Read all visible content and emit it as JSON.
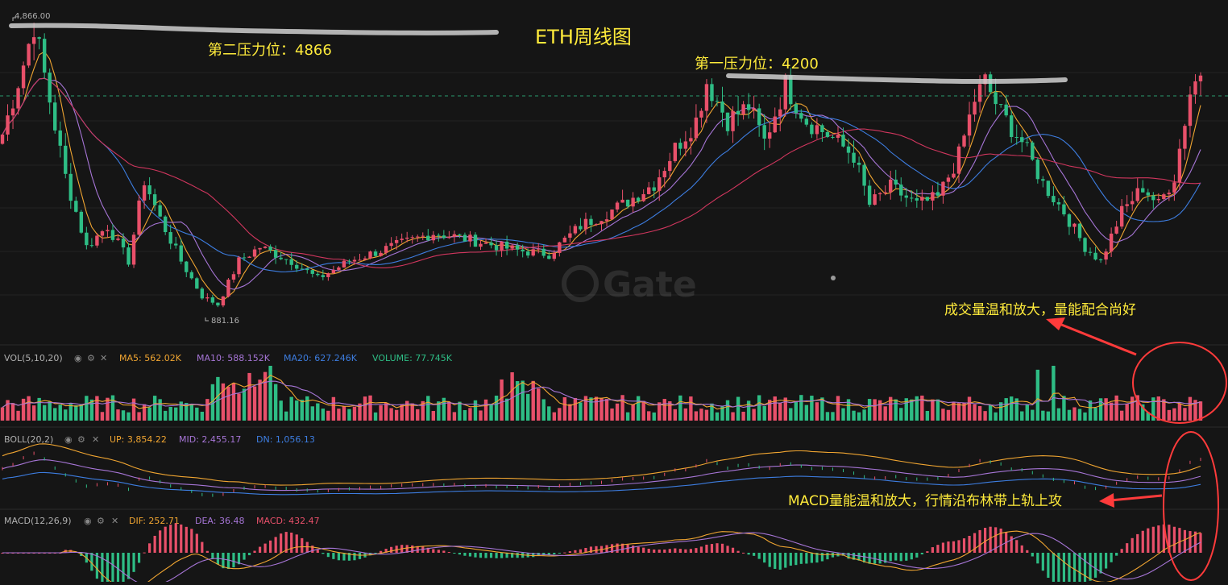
{
  "colors": {
    "background": "#151515",
    "up": "#e8506a",
    "down": "#2ebd85",
    "ma_fast": "#f0a531",
    "ma_mid": "#a675d6",
    "ma_slow": "#3d7de0",
    "ma_long": "#d1365e",
    "annotation": "#ffeb3b",
    "circle": "#ff3b3b",
    "resistance": "#cfcfcf",
    "dashed": "#2ebd85",
    "label": "#b0b0b0"
  },
  "annotations": {
    "title": "ETH周线图",
    "second_resistance": "第二压力位：4866",
    "first_resistance": "第一压力位：4200",
    "volume_note": "成交量温和放大，量能配合尚好",
    "macd_note": "MACD量能温和放大，行情沿布林带上轨上攻"
  },
  "watermark": "Gate",
  "price_labels": {
    "high": "4,866.00",
    "low": "881.16"
  },
  "volume_panel": {
    "name": "VOL(5,10,20)",
    "ma5": "MA5: 562.02K",
    "ma10": "MA10: 588.152K",
    "ma20": "MA20: 627.246K",
    "volume": "VOLUME: 77.745K"
  },
  "boll_panel": {
    "name": "BOLL(20,2)",
    "up": "UP: 3,854.22",
    "mid": "MID: 2,455.17",
    "dn": "DN: 1,056.13"
  },
  "macd_panel": {
    "name": "MACD(12,26,9)",
    "dif": "DIF: 252.71",
    "dea": "DEA: 36.48",
    "macd": "MACD: 432.47"
  },
  "chart_data": {
    "type": "candlestick",
    "timeframe": "weekly",
    "price_high": 4866,
    "price_low": 881.16,
    "resistance_levels": [
      4866,
      4200
    ],
    "key_points": [
      {
        "i": 0,
        "p": 3300
      },
      {
        "i": 4,
        "p": 4300
      },
      {
        "i": 6,
        "p": 4866
      },
      {
        "i": 12,
        "p": 2700
      },
      {
        "i": 16,
        "p": 1700
      },
      {
        "i": 20,
        "p": 2000
      },
      {
        "i": 24,
        "p": 1500
      },
      {
        "i": 27,
        "p": 2650
      },
      {
        "i": 30,
        "p": 2100
      },
      {
        "i": 34,
        "p": 1500
      },
      {
        "i": 38,
        "p": 1000
      },
      {
        "i": 41,
        "p": 881
      },
      {
        "i": 45,
        "p": 1500
      },
      {
        "i": 49,
        "p": 1700
      },
      {
        "i": 55,
        "p": 1500
      },
      {
        "i": 60,
        "p": 1250
      },
      {
        "i": 66,
        "p": 1500
      },
      {
        "i": 72,
        "p": 1650
      },
      {
        "i": 78,
        "p": 1800
      },
      {
        "i": 82,
        "p": 1900
      },
      {
        "i": 86,
        "p": 1850
      },
      {
        "i": 92,
        "p": 1750
      },
      {
        "i": 98,
        "p": 1650
      },
      {
        "i": 104,
        "p": 1600
      },
      {
        "i": 110,
        "p": 2000
      },
      {
        "i": 118,
        "p": 2300
      },
      {
        "i": 124,
        "p": 2600
      },
      {
        "i": 128,
        "p": 3100
      },
      {
        "i": 132,
        "p": 3500
      },
      {
        "i": 134,
        "p": 4050
      },
      {
        "i": 138,
        "p": 3500
      },
      {
        "i": 142,
        "p": 3700
      },
      {
        "i": 145,
        "p": 3200
      },
      {
        "i": 149,
        "p": 4000
      },
      {
        "i": 153,
        "p": 3500
      },
      {
        "i": 157,
        "p": 3300
      },
      {
        "i": 162,
        "p": 3000
      },
      {
        "i": 165,
        "p": 2300
      },
      {
        "i": 169,
        "p": 2550
      },
      {
        "i": 174,
        "p": 2300
      },
      {
        "i": 178,
        "p": 2400
      },
      {
        "i": 182,
        "p": 3000
      },
      {
        "i": 185,
        "p": 3800
      },
      {
        "i": 187,
        "p": 4050
      },
      {
        "i": 190,
        "p": 3600
      },
      {
        "i": 194,
        "p": 3200
      },
      {
        "i": 198,
        "p": 2600
      },
      {
        "i": 202,
        "p": 2200
      },
      {
        "i": 206,
        "p": 1700
      },
      {
        "i": 209,
        "p": 1500
      },
      {
        "i": 213,
        "p": 2200
      },
      {
        "i": 217,
        "p": 2550
      },
      {
        "i": 220,
        "p": 2300
      },
      {
        "i": 223,
        "p": 2700
      },
      {
        "i": 226,
        "p": 3900
      },
      {
        "i": 228,
        "p": 4200
      }
    ]
  }
}
